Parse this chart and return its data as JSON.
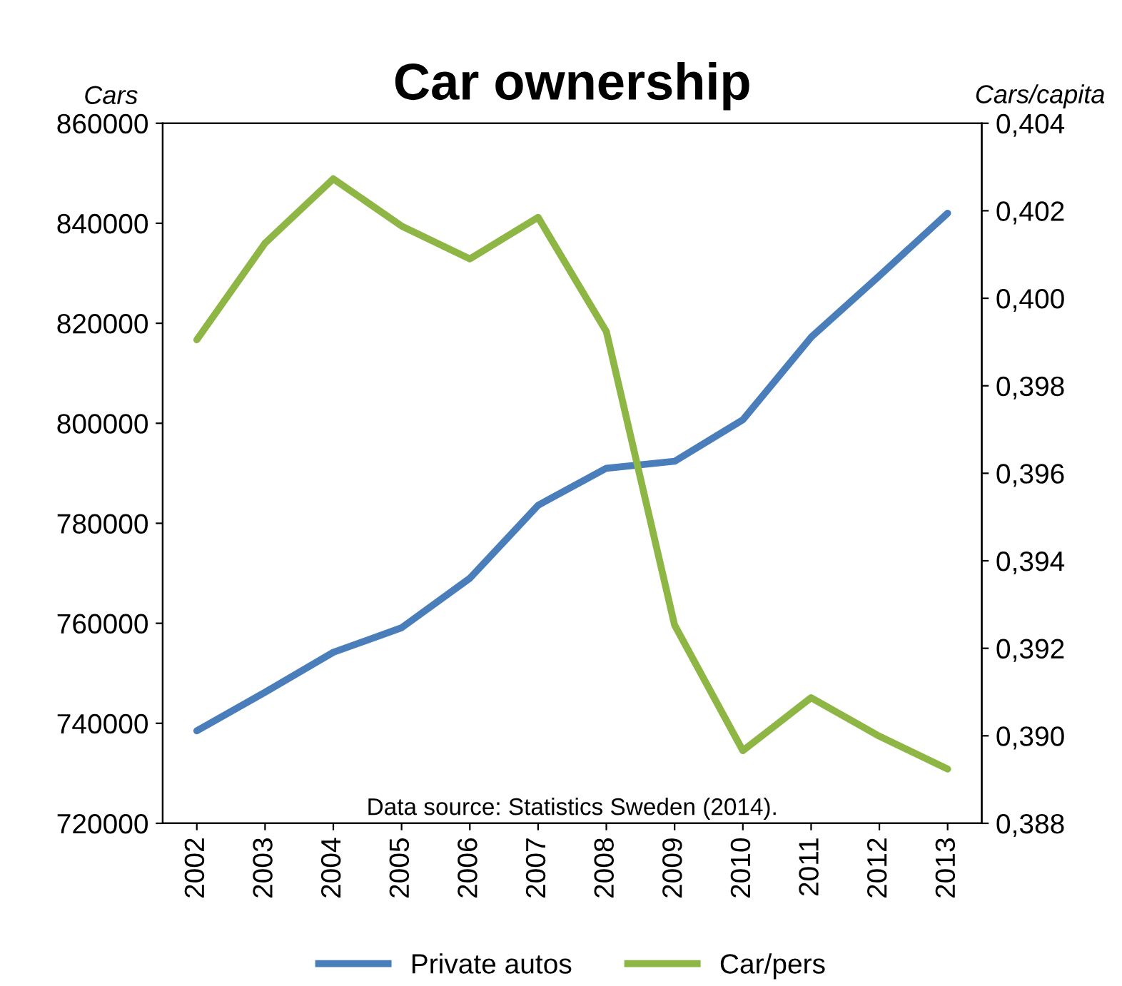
{
  "chart_data": {
    "type": "line",
    "title": "Car ownership",
    "ylabel": "Cars",
    "y2label": "Cars/capita",
    "categories": [
      "2002",
      "2003",
      "2004",
      "2005",
      "2006",
      "2007",
      "2008",
      "2009",
      "2010",
      "2011",
      "2012",
      "2013"
    ],
    "series": [
      {
        "name": "Private autos",
        "color": "#4a7ebb",
        "values": [
          738500,
          746200,
          754200,
          759100,
          769000,
          783600,
          791000,
          792400,
          800700,
          817200,
          829500,
          842000
        ]
      },
      {
        "name": "Car/pers",
        "color": "#8db644",
        "axis": "y2",
        "values": [
          0.39905,
          0.40126,
          0.40273,
          0.40165,
          0.4009,
          0.40185,
          0.39924,
          0.39253,
          0.38966,
          0.39087,
          0.38999,
          0.38924
        ]
      }
    ],
    "ylim": [
      720000,
      860000
    ],
    "yticks": [
      720000,
      740000,
      760000,
      780000,
      800000,
      820000,
      840000,
      860000
    ],
    "y2lim": [
      0.388,
      0.404
    ],
    "y2ticks": [
      {
        "value": 0.388,
        "label": "0,388"
      },
      {
        "value": 0.39,
        "label": "0,390"
      },
      {
        "value": 0.392,
        "label": "0,392"
      },
      {
        "value": 0.394,
        "label": "0,394"
      },
      {
        "value": 0.396,
        "label": "0,396"
      },
      {
        "value": 0.398,
        "label": "0,398"
      },
      {
        "value": 0.4,
        "label": "0,400"
      },
      {
        "value": 0.402,
        "label": "0,402"
      },
      {
        "value": 0.404,
        "label": "0,404"
      }
    ],
    "annotations": [
      "Data source: Statistics Sweden (2014)."
    ],
    "legend": "bottom",
    "grid": false,
    "marker": "none",
    "line_style": "solid"
  }
}
